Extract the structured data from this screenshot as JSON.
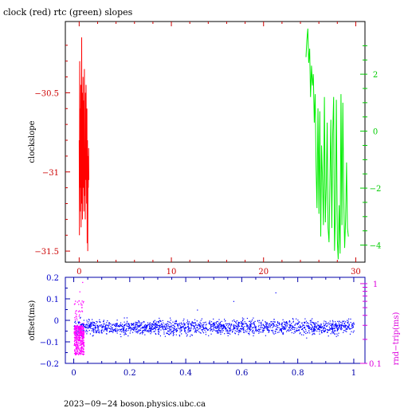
{
  "chart_data": [
    {
      "type": "line",
      "title": "clock (red) rtc (green) slopes",
      "xlabel": "",
      "ylabel": "clockslope",
      "xlim": [
        -1.5,
        31
      ],
      "x_ticks": [
        0,
        10,
        20,
        30
      ],
      "y_left": {
        "lim": [
          -31.57,
          -30.05
        ],
        "ticks": [
          -30.5,
          -31,
          -31.5
        ],
        "color": "#cc0000"
      },
      "y_right": {
        "lim": [
          -4.6,
          3.85
        ],
        "ticks": [
          2,
          0,
          -2,
          -4
        ],
        "color": "#00cc00"
      },
      "series": [
        {
          "color": "#ff0000",
          "axis": "left",
          "x": [
            0.0,
            0.03,
            0.06,
            0.09,
            0.12,
            0.15,
            0.18,
            0.21,
            0.24,
            0.27,
            0.3,
            0.33,
            0.36,
            0.39,
            0.42,
            0.45,
            0.48,
            0.51,
            0.54,
            0.57,
            0.6,
            0.63,
            0.66,
            0.69,
            0.72,
            0.75,
            0.78,
            0.81,
            0.84,
            0.87,
            0.9,
            0.93,
            0.96,
            0.99,
            1.02,
            1.05
          ],
          "values": [
            -30.8,
            -31.4,
            -30.3,
            -31.1,
            -30.6,
            -31.25,
            -30.45,
            -31.35,
            -30.7,
            -30.15,
            -31.2,
            -30.5,
            -31.3,
            -30.75,
            -30.4,
            -31.1,
            -30.55,
            -31.25,
            -30.65,
            -30.35,
            -31.15,
            -30.85,
            -31.3,
            -30.5,
            -31.05,
            -30.45,
            -30.9,
            -31.2,
            -30.6,
            -31.45,
            -30.8,
            -31.5,
            -30.9,
            -31.1,
            -30.85,
            -31.05
          ]
        },
        {
          "color": "#00ee00",
          "axis": "right",
          "x": [
            24.6,
            24.7,
            24.8,
            24.9,
            25.0,
            25.1,
            25.2,
            25.3,
            25.4,
            25.5,
            25.6,
            25.7,
            25.8,
            25.9,
            26.0,
            26.1,
            26.2,
            26.3,
            26.4,
            26.5,
            26.6,
            26.7,
            26.8,
            26.9,
            27.0,
            27.1,
            27.2,
            27.3,
            27.4,
            27.5,
            27.6,
            27.7,
            27.8,
            27.9,
            28.0,
            28.1,
            28.2,
            28.3,
            28.4,
            28.5,
            28.6,
            28.7,
            28.8,
            28.9,
            29.0,
            29.1,
            29.2
          ],
          "values": [
            2.6,
            3.2,
            3.6,
            2.4,
            2.9,
            1.2,
            2.3,
            1.6,
            2.0,
            0.3,
            1.3,
            -1.3,
            -2.7,
            0.8,
            -2.9,
            0.7,
            -3.7,
            -0.5,
            -1.8,
            -3.3,
            1.2,
            -3.2,
            -2.0,
            0.3,
            -3.4,
            -3.9,
            -1.8,
            0.4,
            -3.4,
            -0.1,
            1.2,
            -4.2,
            -2.8,
            1.1,
            -3.8,
            -4.5,
            -2.6,
            -4.3,
            1.3,
            -3.3,
            1.0,
            -2.4,
            -4.1,
            -3.1,
            -1.1,
            -3.4,
            -3.7
          ]
        }
      ]
    },
    {
      "type": "scatter",
      "xlabel": "",
      "ylabel": "offset(ms)",
      "y2label": "rnd−trip(ms)",
      "xlim": [
        -0.03,
        1.04
      ],
      "x_ticks": [
        "0",
        "0.2",
        "0.4",
        "0.6",
        "0.8",
        "1"
      ],
      "y_left": {
        "lim": [
          -0.2,
          0.2
        ],
        "ticks": [
          "0.2",
          "0.1",
          "0",
          "−0.1",
          "−0.2"
        ],
        "color": "#0000cc"
      },
      "y_right": {
        "lim": [
          0.1,
          1.2
        ],
        "scale": "log",
        "ticks": [
          "1",
          "0.1"
        ],
        "color": "#dd00dd"
      },
      "series": [
        {
          "color": "#0000ff",
          "axis": "left",
          "x_range": [
            0.0,
            1.0
          ],
          "y_center": -0.03,
          "y_spread": [
            -0.07,
            0.02
          ]
        },
        {
          "color": "#ff00ff",
          "axis": "right",
          "x_range": [
            0.0,
            0.035
          ],
          "y_range": [
            0.12,
            1.05
          ]
        }
      ]
    }
  ],
  "footer": "2023−09−24 boson.physics.ubc.ca"
}
